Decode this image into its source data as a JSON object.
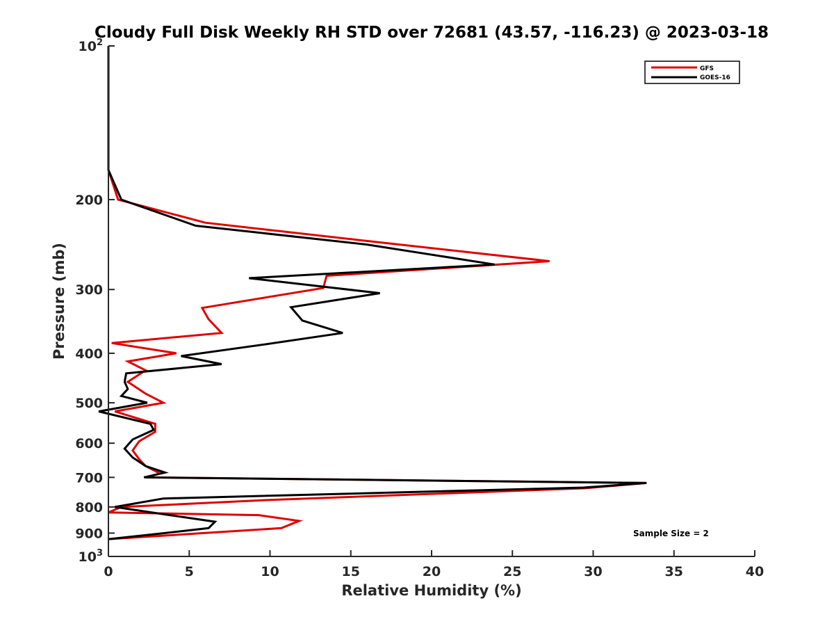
{
  "chart_data": {
    "type": "line",
    "title": "Cloudy Full Disk Weekly RH STD over 72681 (43.57, -116.23) @ 2023-03-18",
    "xlabel": "Relative Humidity (%)",
    "ylabel": "Pressure (mb)",
    "xlim": [
      0,
      40
    ],
    "ylim": [
      100,
      1000
    ],
    "y_scale": "log",
    "y_reversed": true,
    "x_ticks": [
      "0",
      "5",
      "10",
      "15",
      "20",
      "25",
      "30",
      "35",
      "40"
    ],
    "y_ticks": [
      {
        "value": 100,
        "base": "10",
        "exp": "2"
      },
      {
        "value": 200,
        "label": "200"
      },
      {
        "value": 300,
        "label": "300"
      },
      {
        "value": 400,
        "label": "400"
      },
      {
        "value": 500,
        "label": "500"
      },
      {
        "value": 600,
        "label": "600"
      },
      {
        "value": 700,
        "label": "700"
      },
      {
        "value": 800,
        "label": "800"
      },
      {
        "value": 900,
        "label": "900"
      },
      {
        "value": 1000,
        "base": "10",
        "exp": "3"
      }
    ],
    "grid": false,
    "legend_position": "top-right",
    "annotation": "Sample Size = 2",
    "series": [
      {
        "name": "GFS",
        "color": "#e00000",
        "points": [
          [
            0,
            100
          ],
          [
            0,
            175
          ],
          [
            0.6,
            200
          ],
          [
            6.0,
            222
          ],
          [
            15.5,
            240
          ],
          [
            27.3,
            264
          ],
          [
            13.5,
            282
          ],
          [
            13.3,
            298
          ],
          [
            5.8,
            326
          ],
          [
            6.2,
            343
          ],
          [
            7.0,
            365
          ],
          [
            0.2,
            382
          ],
          [
            4.2,
            400
          ],
          [
            1.2,
            415
          ],
          [
            2.3,
            432
          ],
          [
            1.2,
            455
          ],
          [
            2.3,
            480
          ],
          [
            3.4,
            500
          ],
          [
            0.4,
            520
          ],
          [
            2.9,
            550
          ],
          [
            2.9,
            570
          ],
          [
            1.9,
            595
          ],
          [
            1.5,
            620
          ],
          [
            1.9,
            645
          ],
          [
            2.3,
            665
          ],
          [
            3.2,
            688
          ],
          [
            2.3,
            700
          ],
          [
            33.3,
            718
          ],
          [
            29.5,
            735
          ],
          [
            10.0,
            775
          ],
          [
            0.8,
            800
          ],
          [
            0,
            820
          ],
          [
            9.3,
            830
          ],
          [
            11.8,
            852
          ],
          [
            10.7,
            880
          ],
          [
            5.9,
            900
          ],
          [
            0,
            925
          ]
        ]
      },
      {
        "name": "GOES-16",
        "color": "#000000",
        "points": [
          [
            0,
            100
          ],
          [
            0,
            175
          ],
          [
            0.8,
            200
          ],
          [
            5.4,
            225
          ],
          [
            16.0,
            245
          ],
          [
            23.9,
            268
          ],
          [
            8.7,
            285
          ],
          [
            16.8,
            305
          ],
          [
            11.3,
            325
          ],
          [
            12.0,
            345
          ],
          [
            14.5,
            365
          ],
          [
            9.5,
            385
          ],
          [
            4.5,
            405
          ],
          [
            7.0,
            420
          ],
          [
            1.1,
            438
          ],
          [
            1.0,
            455
          ],
          [
            1.2,
            470
          ],
          [
            0.8,
            485
          ],
          [
            2.4,
            500
          ],
          [
            -0.6,
            520
          ],
          [
            2.6,
            550
          ],
          [
            2.8,
            565
          ],
          [
            1.5,
            590
          ],
          [
            1.0,
            615
          ],
          [
            1.5,
            640
          ],
          [
            2.3,
            665
          ],
          [
            3.5,
            685
          ],
          [
            2.2,
            700
          ],
          [
            33.3,
            718
          ],
          [
            29.4,
            733
          ],
          [
            3.4,
            770
          ],
          [
            0.4,
            800
          ],
          [
            3.8,
            830
          ],
          [
            6.6,
            855
          ],
          [
            6.2,
            880
          ],
          [
            3.5,
            900
          ],
          [
            0,
            925
          ]
        ]
      }
    ]
  }
}
